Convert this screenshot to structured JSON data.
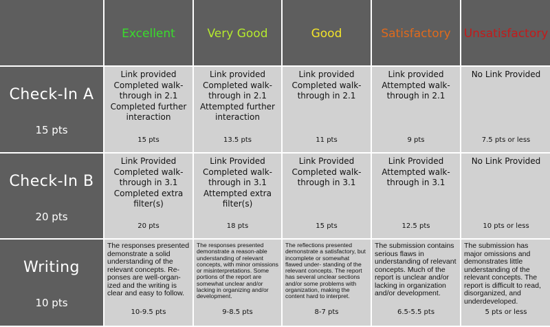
{
  "colors": {
    "header_bg": "#5e5e5e",
    "cell_bg": "#d1d1d1",
    "excellent": "#3adc2c",
    "very_good": "#b5ea2e",
    "good": "#f2e42a",
    "satisfactory": "#e06a1c",
    "unsatisfactory": "#c41a1a"
  },
  "levels": [
    "Excellent",
    "Very Good",
    "Good",
    "Satisfactory",
    "Unsatisfactory"
  ],
  "rows": [
    {
      "name": "Check-In A",
      "points": "15 pts",
      "cells": [
        {
          "text": "Link provided\nCompleted walk-\nthrough in 2.1\nCompleted further\ninteraction",
          "score": "15 pts"
        },
        {
          "text": "Link provided\nCompleted walk-\nthrough in 2.1\nAttempted further\ninteraction",
          "score": "13.5 pts"
        },
        {
          "text": "Link provided\nCompleted walk-\nthrough in 2.1",
          "score": "11 pts"
        },
        {
          "text": "Link provided\nAttempted walk-\nthrough in 2.1",
          "score": "9 pts"
        },
        {
          "text": "No Link Provided",
          "score": "7.5 pts or less"
        }
      ]
    },
    {
      "name": "Check-In B",
      "points": "20 pts",
      "cells": [
        {
          "text": "Link Provided\nCompleted walk-\nthrough in 3.1\nCompleted extra\nfilter(s)",
          "score": "20 pts"
        },
        {
          "text": "Link Provided\nCompleted walk-\nthrough in 3.1\nAttempted extra\nfilter(s)",
          "score": "18 pts"
        },
        {
          "text": "Link Provided\nCompleted walk-\nthrough in 3.1",
          "score": "15 pts"
        },
        {
          "text": "Link Provided\nAttempted walk-\nthrough in 3.1",
          "score": "12.5 pts"
        },
        {
          "text": "No Link Provided",
          "score": "10 pts or less"
        }
      ]
    },
    {
      "name": "Writing",
      "points": "10 pts",
      "cells": [
        {
          "text": "The responses presented demonstrate a solid understanding of the relevant concepts. Re- ponses are well-organ- ized and the writing is clear and easy to follow.",
          "score": "10-9.5 pts"
        },
        {
          "text": "The responses presented demonstrate a reason-able understanding of relevant concepts, with minor omissions or misinterpretations. Some portions of the report are somewhat unclear and/or lacking in organizing and/or development.",
          "score": "9-8.5 pts"
        },
        {
          "text": "The reflections presented demonstrate a satisfactory, but incomplete or somewhat flawed under- standing of the relevant concepts. The report has several unclear sections and/or some problems with organization, making the content hard to interpret.",
          "score": "8-7 pts"
        },
        {
          "text": "The submission contains serious flaws in understanding of relevant concepts. Much of the report is unclear and/or lacking in organization and/or development.",
          "score": "6.5-5.5 pts"
        },
        {
          "text": "The submission has major omissions and demonstrates little understanding of the relevant concepts. The report is difficult to read, disorganized, and underdeveloped.",
          "score": "5 pts or less"
        }
      ]
    }
  ]
}
